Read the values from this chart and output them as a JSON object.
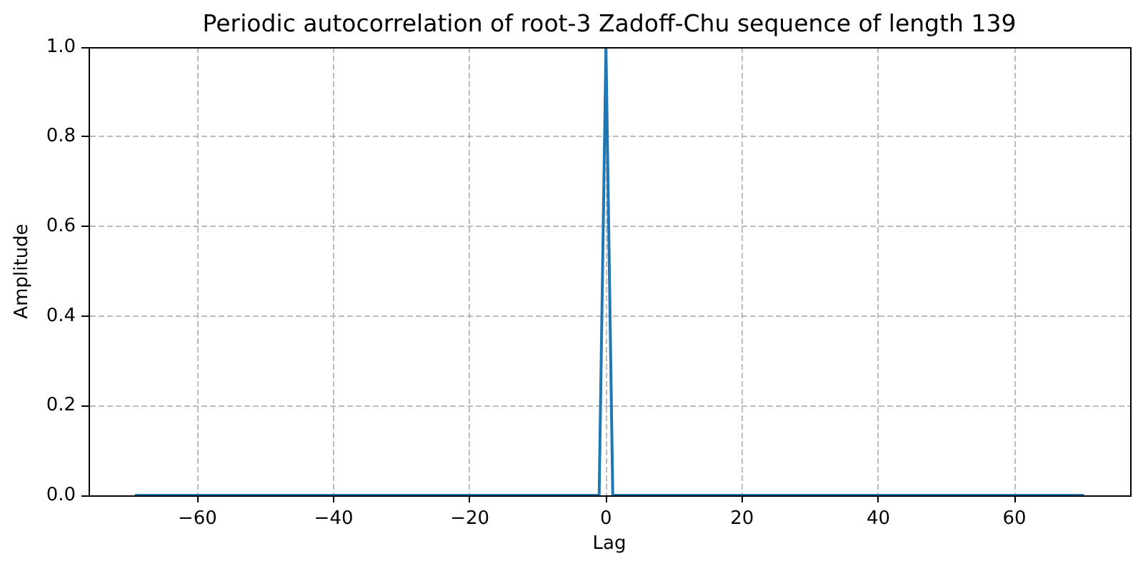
{
  "chart_data": {
    "type": "line",
    "title": "Periodic autocorrelation of root-3 Zadoff-Chu sequence of length 139",
    "xlabel": "Lag",
    "ylabel": "Amplitude",
    "x": [
      -69,
      -1,
      0,
      1,
      70
    ],
    "series": [
      {
        "color": "#1f77b4",
        "values": [
          0,
          0,
          1,
          0,
          0
        ]
      }
    ],
    "xlim": [
      -76,
      77
    ],
    "ylim": [
      0,
      1
    ],
    "xticks": [
      {
        "value": -60,
        "label": "−60"
      },
      {
        "value": -40,
        "label": "−40"
      },
      {
        "value": -20,
        "label": "−20"
      },
      0,
      20,
      40,
      60
    ],
    "yticks": [
      {
        "value": 0,
        "label": "0.0"
      },
      {
        "value": 0.2,
        "label": "0.2"
      },
      {
        "value": 0.4,
        "label": "0.4"
      },
      {
        "value": 0.6,
        "label": "0.6"
      },
      {
        "value": 0.8,
        "label": "0.8"
      },
      {
        "value": 1,
        "label": "1.0"
      }
    ],
    "grid": true
  }
}
